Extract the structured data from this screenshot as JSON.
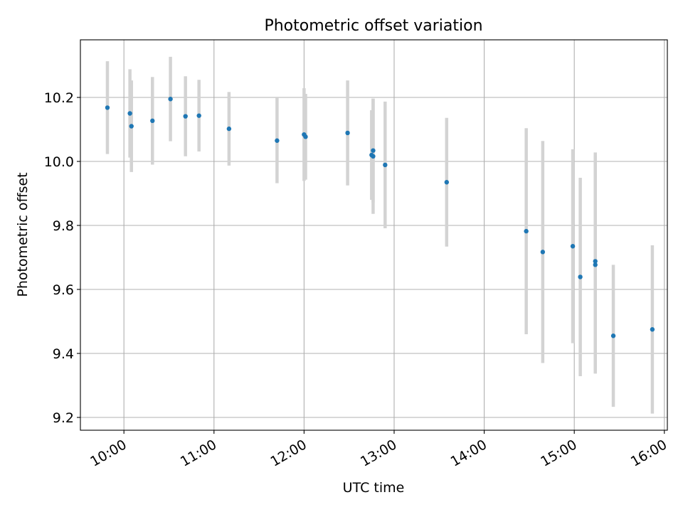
{
  "chart_data": {
    "type": "scatter",
    "title": "Photometric offset variation",
    "xlabel": "UTC time",
    "ylabel": "Photometric offset",
    "x_ticks": [
      "10:00",
      "11:00",
      "12:00",
      "13:00",
      "14:00",
      "15:00",
      "16:00"
    ],
    "y_ticks": [
      "9.2",
      "9.4",
      "9.6",
      "9.8",
      "10.0",
      "10.2"
    ],
    "xlim": [
      "09:31",
      "16:02"
    ],
    "ylim": [
      9.16,
      10.38
    ],
    "grid": true,
    "marker_color": "#1f77b4",
    "errorbar_color": "#d3d3d3",
    "points": [
      {
        "time": "09:49",
        "y": 10.168,
        "err": 0.145
      },
      {
        "time": "10:04",
        "y": 10.15,
        "err": 0.138
      },
      {
        "time": "10:05",
        "y": 10.11,
        "err": 0.143
      },
      {
        "time": "10:19",
        "y": 10.127,
        "err": 0.137
      },
      {
        "time": "10:31",
        "y": 10.195,
        "err": 0.132
      },
      {
        "time": "10:41",
        "y": 10.141,
        "err": 0.125
      },
      {
        "time": "10:50",
        "y": 10.143,
        "err": 0.112
      },
      {
        "time": "11:10",
        "y": 10.102,
        "err": 0.115
      },
      {
        "time": "11:42",
        "y": 10.065,
        "err": 0.133
      },
      {
        "time": "12:00",
        "y": 10.084,
        "err": 0.145
      },
      {
        "time": "12:01",
        "y": 10.077,
        "err": 0.134
      },
      {
        "time": "12:29",
        "y": 10.089,
        "err": 0.164
      },
      {
        "time": "12:45",
        "y": 10.02,
        "err": 0.14
      },
      {
        "time": "12:46",
        "y": 10.034,
        "err": 0.162
      },
      {
        "time": "12:46",
        "y": 10.016,
        "err": 0.18
      },
      {
        "time": "12:54",
        "y": 9.989,
        "err": 0.198
      },
      {
        "time": "13:35",
        "y": 9.935,
        "err": 0.201
      },
      {
        "time": "14:28",
        "y": 9.782,
        "err": 0.322
      },
      {
        "time": "14:39",
        "y": 9.717,
        "err": 0.347
      },
      {
        "time": "14:59",
        "y": 9.735,
        "err": 0.303
      },
      {
        "time": "15:04",
        "y": 9.639,
        "err": 0.31
      },
      {
        "time": "15:14",
        "y": 9.677,
        "err": 0.34
      },
      {
        "time": "15:14",
        "y": 9.688,
        "err": 0.34
      },
      {
        "time": "15:26",
        "y": 9.455,
        "err": 0.222
      },
      {
        "time": "15:52",
        "y": 9.475,
        "err": 0.263
      }
    ]
  }
}
